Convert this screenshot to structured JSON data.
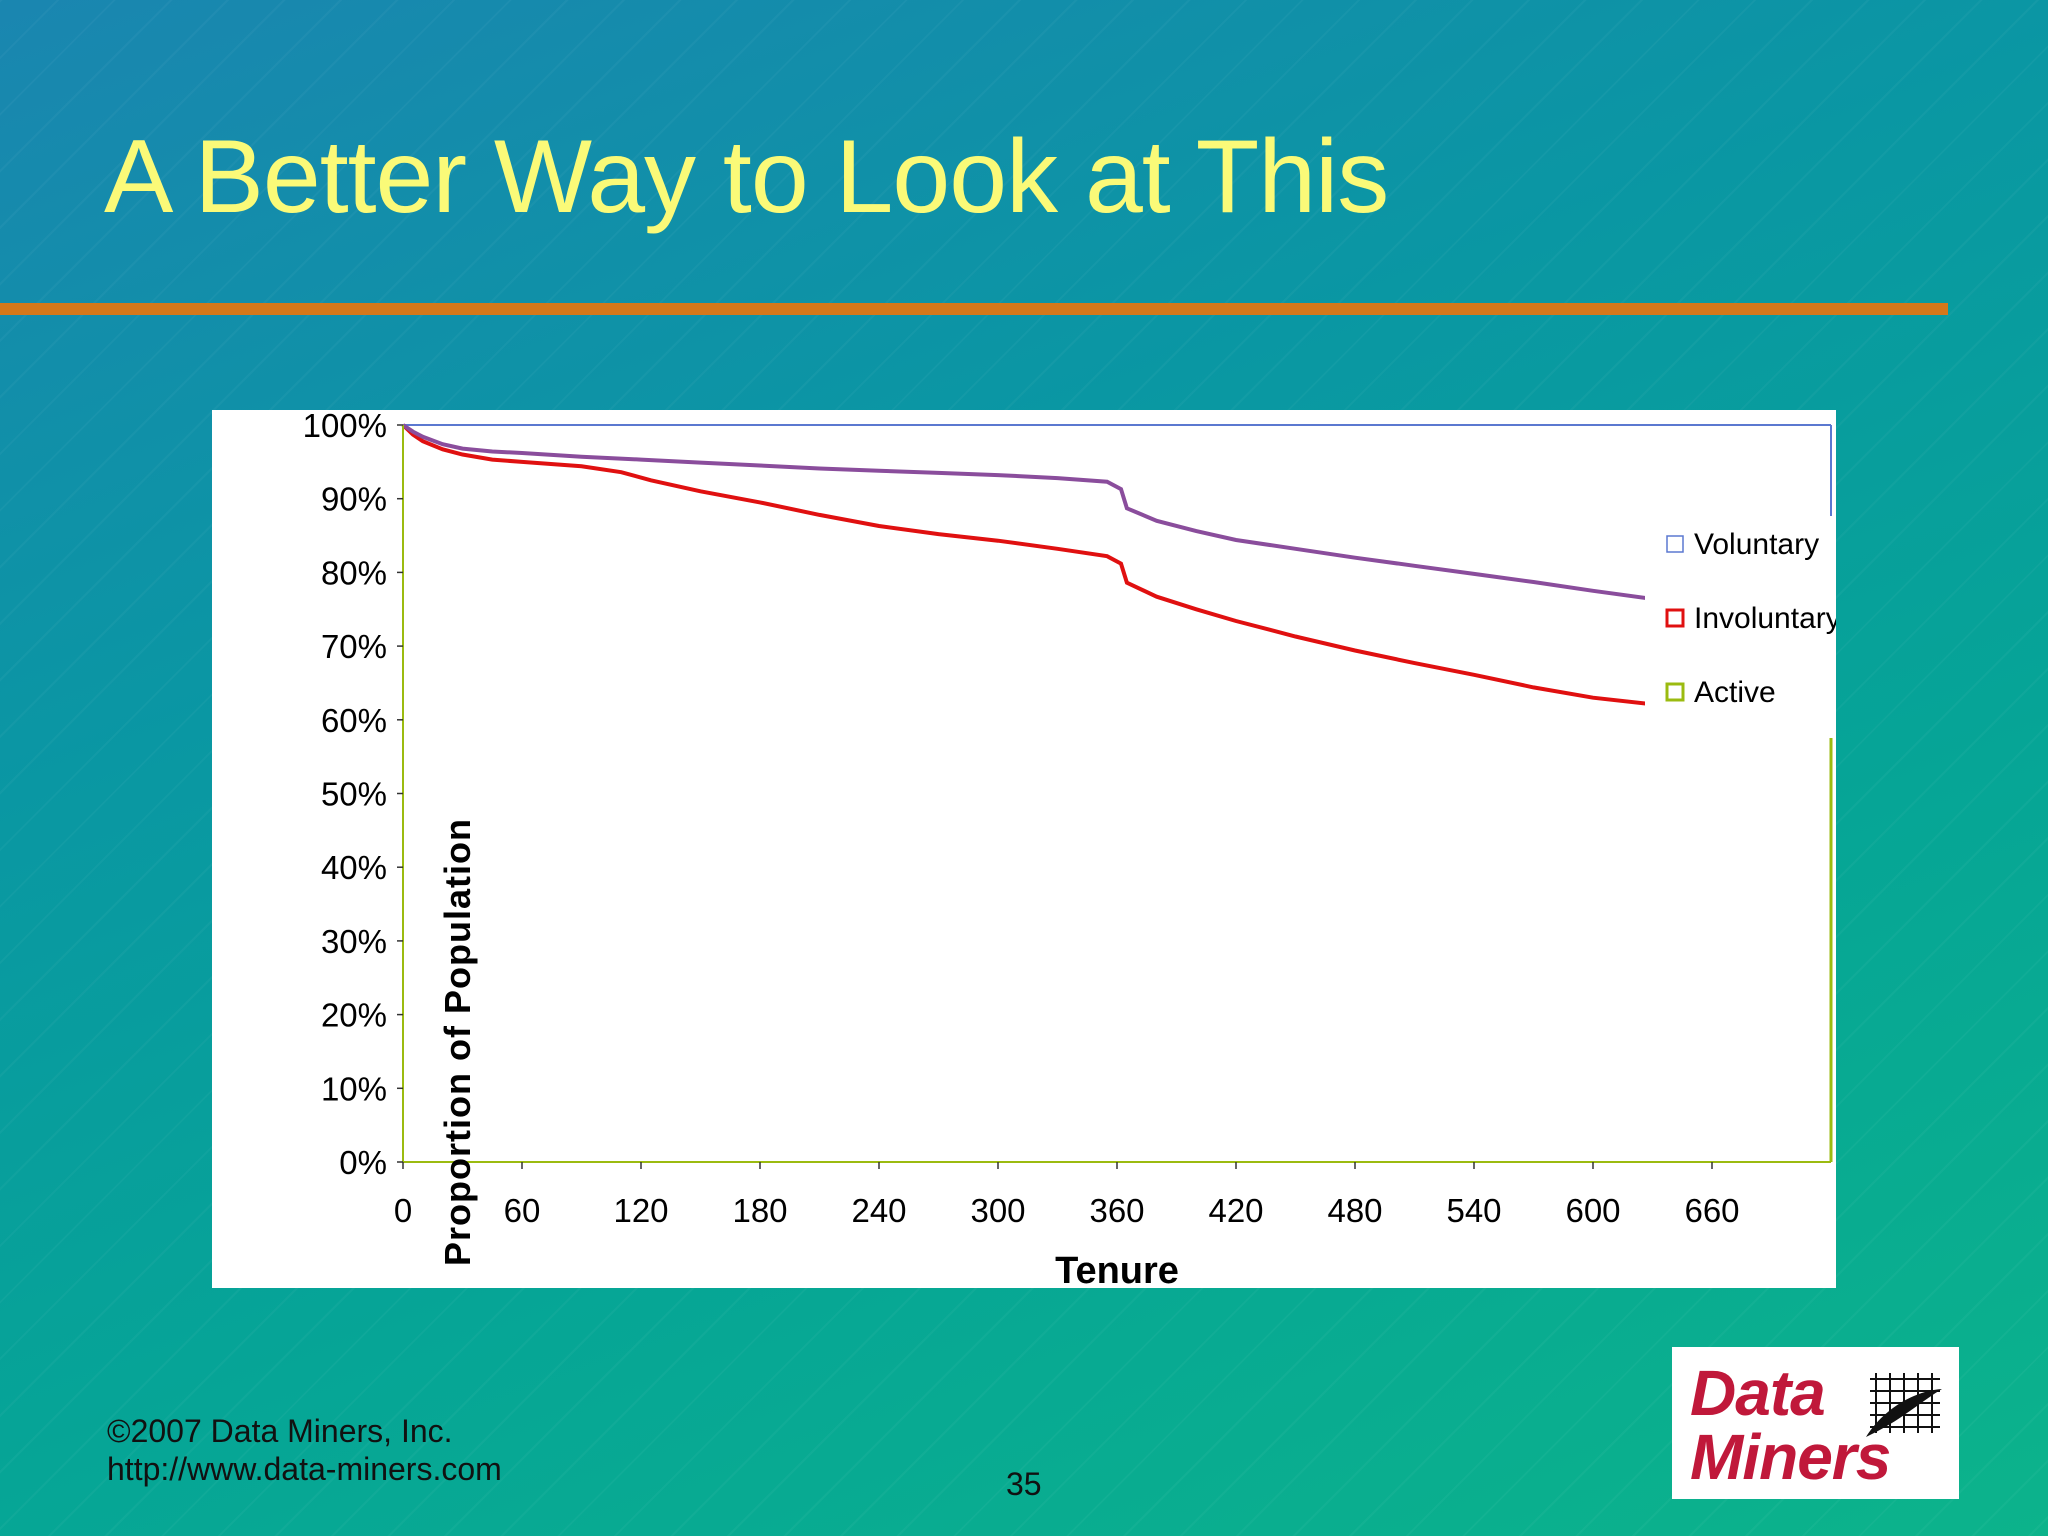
{
  "slide": {
    "title": "A Better Way to Look at This",
    "footer_copyright": "©2007 Data Miners, Inc.",
    "footer_url": "http://www.data-miners.com",
    "page_number": "35",
    "logo_line1": "Data",
    "logo_line2": "Miners",
    "colors": {
      "title": "#fafa78",
      "rule": "#d4781a",
      "logo": "#c0183a"
    }
  },
  "chart_data": {
    "type": "area",
    "title": "",
    "xlabel": "Tenure",
    "ylabel": "Proportion of Population",
    "x_ticks": [
      0,
      60,
      120,
      180,
      240,
      300,
      360,
      420,
      480,
      540,
      600,
      660
    ],
    "y_ticks": [
      "0%",
      "10%",
      "20%",
      "30%",
      "40%",
      "50%",
      "60%",
      "70%",
      "80%",
      "90%",
      "100%"
    ],
    "xlim": [
      0,
      720
    ],
    "ylim": [
      0,
      100
    ],
    "grid": false,
    "legend_position": "right-inside",
    "series": [
      {
        "name": "Voluntary",
        "color": "#5b78d0",
        "x": [
          0,
          720
        ],
        "values": [
          100,
          100
        ]
      },
      {
        "name": "Involuntary",
        "color": "#e01010",
        "x": [
          0,
          5,
          10,
          20,
          30,
          45,
          60,
          90,
          110,
          125,
          150,
          180,
          210,
          240,
          270,
          300,
          330,
          355,
          362,
          365,
          380,
          400,
          420,
          450,
          480,
          510,
          540,
          570,
          600,
          630,
          660,
          690,
          719
        ],
        "values": [
          100,
          98.7,
          97.8,
          96.7,
          96,
          95.3,
          95,
          94.4,
          93.6,
          92.5,
          91,
          89.5,
          87.8,
          86.3,
          85.2,
          84.3,
          83.2,
          82.2,
          81.2,
          78.6,
          76.7,
          75,
          73.4,
          71.3,
          69.4,
          67.7,
          66.1,
          64.4,
          63,
          62.1,
          61.1,
          60.1,
          58.7
        ]
      },
      {
        "name": "",
        "color": "#8a4d9c",
        "x": [
          0,
          5,
          10,
          20,
          30,
          45,
          60,
          90,
          120,
          150,
          180,
          210,
          240,
          270,
          300,
          330,
          355,
          362,
          365,
          380,
          400,
          420,
          450,
          480,
          510,
          540,
          570,
          600,
          630,
          660,
          690,
          719
        ],
        "values": [
          100,
          99.1,
          98.4,
          97.4,
          96.8,
          96.4,
          96.2,
          95.7,
          95.3,
          94.9,
          94.5,
          94.1,
          93.8,
          93.5,
          93.2,
          92.8,
          92.3,
          91.3,
          88.7,
          87,
          85.6,
          84.4,
          83.2,
          82,
          80.9,
          79.8,
          78.7,
          77.5,
          76.4,
          75.4,
          74.6,
          73.6
        ]
      },
      {
        "name": "Active",
        "color": "#9bbb10",
        "x": [
          0,
          720
        ],
        "values": [
          0,
          0
        ]
      }
    ]
  }
}
